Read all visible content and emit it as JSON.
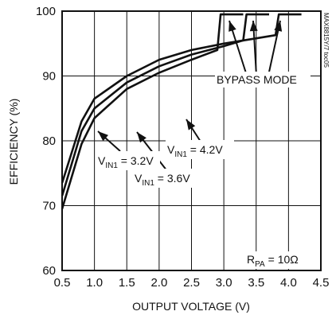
{
  "chart_data": {
    "type": "line",
    "xlabel": "OUTPUT VOLTAGE (V)",
    "ylabel": "EFFICIENCY (%)",
    "xlim": [
      0.5,
      4.5
    ],
    "ylim": [
      60,
      100
    ],
    "xticks": [
      "0.5",
      "1.0",
      "1.5",
      "2.0",
      "2.5",
      "3.0",
      "3.5",
      "4.0",
      "4.5"
    ],
    "yticks": [
      "60",
      "70",
      "80",
      "90",
      "100"
    ],
    "grid": true,
    "series": [
      {
        "name_prefix": "V",
        "name_sub": "IN1",
        "name_suffix": " = 3.2V",
        "x": [
          0.5,
          0.8,
          1.0,
          1.5,
          2.0,
          2.5,
          2.9,
          2.95,
          3.0,
          3.3
        ],
        "y": [
          69.5,
          79.5,
          83.5,
          88.0,
          90.5,
          92.5,
          94.0,
          99.5,
          99.5,
          99.5
        ]
      },
      {
        "name_prefix": "V",
        "name_sub": "IN1",
        "name_suffix": " = 3.6V",
        "x": [
          0.5,
          0.8,
          1.0,
          1.5,
          2.0,
          2.5,
          3.0,
          3.3,
          3.35,
          3.4,
          3.7
        ],
        "y": [
          71.5,
          81.5,
          85.0,
          89.0,
          91.5,
          93.3,
          94.6,
          95.5,
          99.5,
          99.5,
          99.5
        ]
      },
      {
        "name_prefix": "V",
        "name_sub": "IN1",
        "name_suffix": " = 4.2V",
        "x": [
          0.5,
          0.8,
          1.0,
          1.5,
          2.0,
          2.5,
          3.0,
          3.5,
          3.8,
          3.85,
          3.9,
          4.2
        ],
        "y": [
          73.5,
          83.0,
          86.5,
          90.0,
          92.5,
          94.0,
          95.0,
          95.8,
          96.3,
          99.5,
          99.5,
          99.5
        ]
      }
    ],
    "annotations": [
      {
        "id": "bypass",
        "text": "BYPASS MODE"
      },
      {
        "id": "rpa",
        "prefix": "R",
        "sub": "PA",
        "suffix": " = 10Ω"
      }
    ],
    "side_label": "MAX8815Y/7 toc05"
  }
}
